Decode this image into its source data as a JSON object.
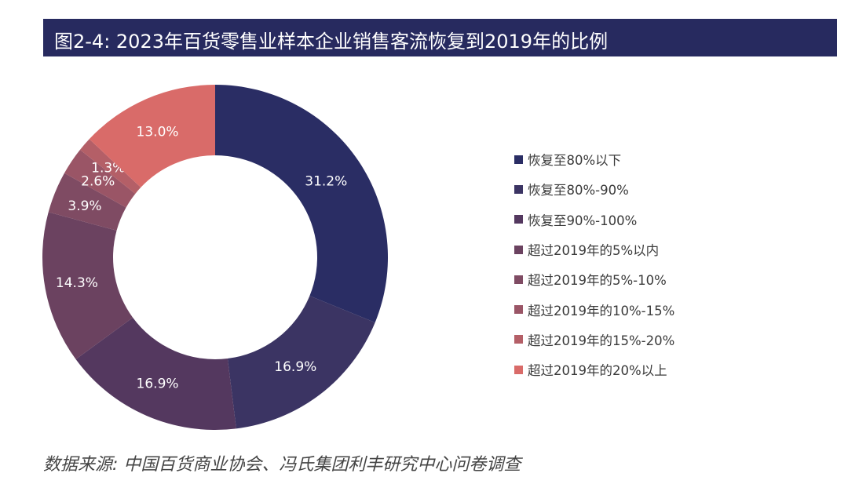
{
  "chart_data": {
    "type": "pie",
    "donut": true,
    "title": "图2-4: 2023年百货零售业样本企业销售客流恢复到2019年的比例",
    "categories": [
      "恢复至80%以下",
      "恢复至80%-90%",
      "恢复至90%-100%",
      "超过2019年的5%以内",
      "超过2019年的5%-10%",
      "超过2019年的10%-15%",
      "超过2019年的15%-20%",
      "超过2019年的20%以上"
    ],
    "values": [
      31.2,
      16.9,
      16.9,
      14.3,
      3.9,
      2.6,
      1.3,
      13.0
    ],
    "data_labels": [
      "31.2%",
      "16.9%",
      "16.9%",
      "14.3%",
      "3.9%",
      "2.6%",
      "1.3%",
      "13.0%"
    ],
    "colors": [
      "#2a2d64",
      "#3b3463",
      "#54385f",
      "#6b4260",
      "#7f4b63",
      "#9a5566",
      "#b45f67",
      "#d96b69"
    ],
    "legend_position": "right",
    "source": "数据来源: 中国百货商业协会、冯氏集团利丰研究中心问卷调查"
  }
}
